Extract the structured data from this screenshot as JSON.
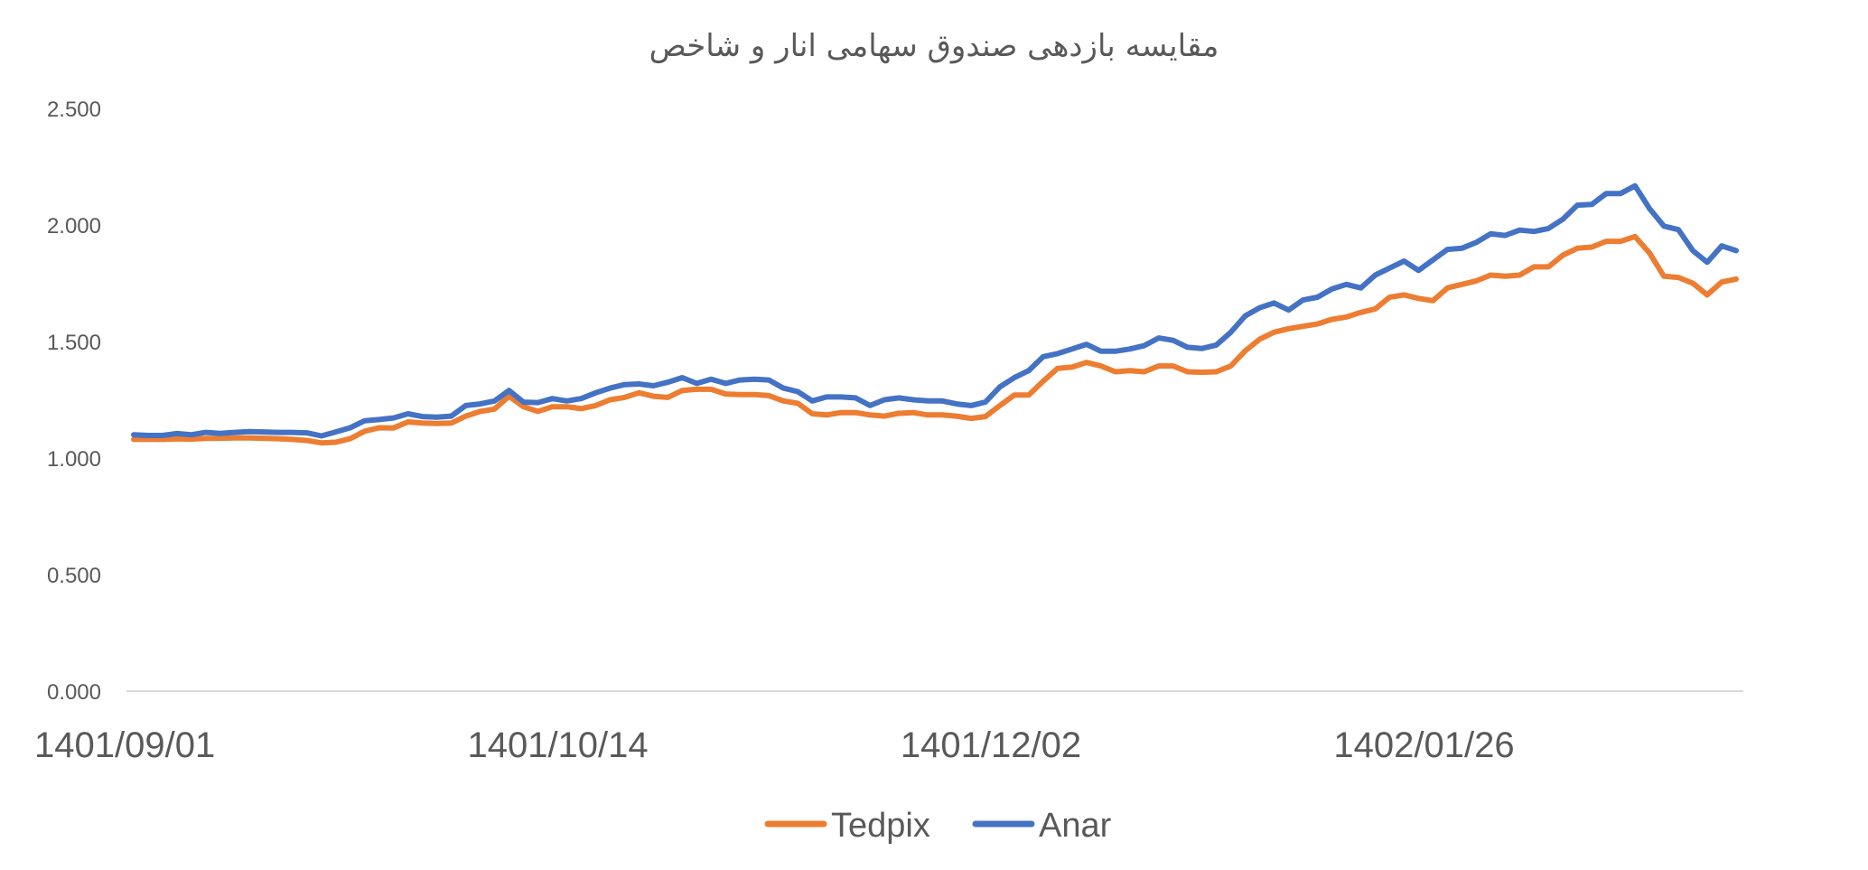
{
  "chart_data": {
    "type": "line",
    "title": "مقایسه بازدهی صندوق سهامی انار و شاخص",
    "xlabel": "",
    "ylabel": "",
    "ylim": [
      0,
      2.5
    ],
    "yticks": [
      "0.000",
      "0.500",
      "1.000",
      "1.500",
      "2.000",
      "2.500"
    ],
    "x_tick_labels": [
      {
        "index": 0,
        "label": "1401/09/01"
      },
      {
        "index": 30,
        "label": "1401/10/14"
      },
      {
        "index": 60,
        "label": "1401/12/02"
      },
      {
        "index": 90,
        "label": "1402/01/26"
      }
    ],
    "grid": false,
    "legend_position": "bottom",
    "series": [
      {
        "name": "Tedpix",
        "color": "#ED7D31",
        "values": [
          1.08,
          1.081,
          1.08,
          1.082,
          1.081,
          1.084,
          1.085,
          1.086,
          1.086,
          1.085,
          1.083,
          1.08,
          1.075,
          1.065,
          1.068,
          1.083,
          1.115,
          1.13,
          1.129,
          1.155,
          1.15,
          1.148,
          1.15,
          1.18,
          1.2,
          1.21,
          1.265,
          1.22,
          1.2,
          1.22,
          1.22,
          1.212,
          1.225,
          1.25,
          1.26,
          1.28,
          1.265,
          1.26,
          1.29,
          1.295,
          1.295,
          1.275,
          1.272,
          1.272,
          1.268,
          1.245,
          1.235,
          1.19,
          1.185,
          1.195,
          1.195,
          1.185,
          1.18,
          1.192,
          1.195,
          1.185,
          1.185,
          1.18,
          1.17,
          1.178,
          1.225,
          1.27,
          1.27,
          1.33,
          1.385,
          1.39,
          1.41,
          1.395,
          1.37,
          1.375,
          1.37,
          1.395,
          1.395,
          1.37,
          1.368,
          1.37,
          1.395,
          1.46,
          1.51,
          1.54,
          1.555,
          1.565,
          1.575,
          1.595,
          1.605,
          1.625,
          1.64,
          1.69,
          1.7,
          1.685,
          1.675,
          1.73,
          1.745,
          1.76,
          1.785,
          1.78,
          1.785,
          1.82,
          1.82,
          1.87,
          1.9,
          1.905,
          1.93,
          1.93,
          1.95,
          1.88,
          1.78,
          1.775,
          1.75,
          1.7,
          1.755,
          1.768
        ]
      },
      {
        "name": "Anar",
        "color": "#4472C4",
        "values": [
          1.1,
          1.097,
          1.097,
          1.105,
          1.1,
          1.11,
          1.106,
          1.11,
          1.113,
          1.112,
          1.11,
          1.11,
          1.108,
          1.095,
          1.112,
          1.13,
          1.16,
          1.165,
          1.172,
          1.19,
          1.178,
          1.175,
          1.18,
          1.225,
          1.232,
          1.245,
          1.29,
          1.24,
          1.238,
          1.255,
          1.245,
          1.255,
          1.28,
          1.3,
          1.315,
          1.318,
          1.31,
          1.325,
          1.345,
          1.32,
          1.338,
          1.32,
          1.335,
          1.338,
          1.335,
          1.3,
          1.285,
          1.245,
          1.262,
          1.262,
          1.258,
          1.225,
          1.25,
          1.258,
          1.25,
          1.245,
          1.245,
          1.232,
          1.225,
          1.24,
          1.305,
          1.345,
          1.375,
          1.435,
          1.448,
          1.468,
          1.488,
          1.458,
          1.458,
          1.468,
          1.482,
          1.515,
          1.505,
          1.475,
          1.47,
          1.485,
          1.54,
          1.61,
          1.645,
          1.665,
          1.635,
          1.678,
          1.69,
          1.725,
          1.745,
          1.73,
          1.785,
          1.815,
          1.845,
          1.805,
          1.85,
          1.895,
          1.9,
          1.925,
          1.962,
          1.955,
          1.978,
          1.972,
          1.985,
          2.025,
          2.085,
          2.088,
          2.135,
          2.135,
          2.168,
          2.07,
          1.995,
          1.98,
          1.89,
          1.84,
          1.91,
          1.89
        ]
      }
    ]
  }
}
